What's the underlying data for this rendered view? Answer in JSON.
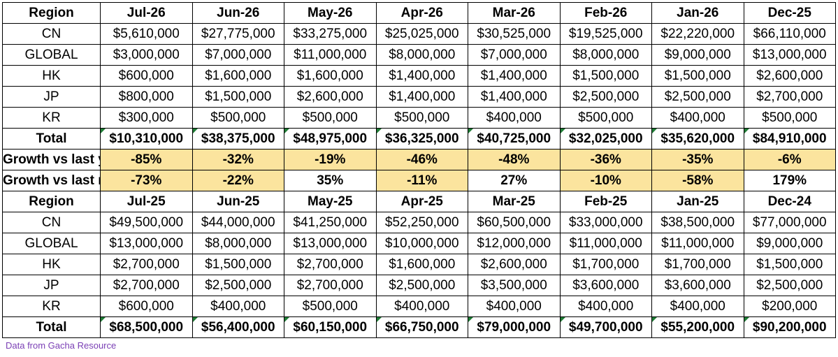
{
  "sheet": {
    "table_2026": {
      "header": [
        "Region",
        "Jul-26",
        "Jun-26",
        "May-26",
        "Apr-26",
        "Mar-26",
        "Feb-26",
        "Jan-26",
        "Dec-25"
      ],
      "rows": [
        {
          "region": "CN",
          "values": [
            "$5,610,000",
            "$27,775,000",
            "$33,275,000",
            "$25,025,000",
            "$30,525,000",
            "$19,525,000",
            "$22,220,000",
            "$66,110,000"
          ]
        },
        {
          "region": "GLOBAL",
          "values": [
            "$3,000,000",
            "$7,000,000",
            "$11,000,000",
            "$8,000,000",
            "$7,000,000",
            "$8,000,000",
            "$9,000,000",
            "$13,000,000"
          ]
        },
        {
          "region": "HK",
          "values": [
            "$600,000",
            "$1,600,000",
            "$1,600,000",
            "$1,400,000",
            "$1,400,000",
            "$1,500,000",
            "$1,500,000",
            "$2,600,000"
          ]
        },
        {
          "region": "JP",
          "values": [
            "$800,000",
            "$1,500,000",
            "$2,600,000",
            "$1,400,000",
            "$1,400,000",
            "$2,500,000",
            "$2,500,000",
            "$2,700,000"
          ]
        },
        {
          "region": "KR",
          "values": [
            "$300,000",
            "$500,000",
            "$500,000",
            "$500,000",
            "$400,000",
            "$500,000",
            "$400,000",
            "$500,000"
          ]
        }
      ],
      "total": {
        "label": "Total",
        "values": [
          "$10,310,000",
          "$38,375,000",
          "$48,975,000",
          "$36,325,000",
          "$40,725,000",
          "$32,025,000",
          "$35,620,000",
          "$84,910,000"
        ]
      },
      "growth_yoy": {
        "label": "Growth vs last year",
        "values": [
          "-85%",
          "-32%",
          "-19%",
          "-46%",
          "-48%",
          "-36%",
          "-35%",
          "-6%"
        ]
      },
      "growth_mom": {
        "label": "Growth vs last month",
        "values": [
          "-73%",
          "-22%",
          "35%",
          "-11%",
          "27%",
          "-10%",
          "-58%",
          "179%"
        ]
      }
    },
    "table_2025": {
      "header": [
        "Region",
        "Jul-25",
        "Jun-25",
        "May-25",
        "Apr-25",
        "Mar-25",
        "Feb-25",
        "Jan-25",
        "Dec-24"
      ],
      "rows": [
        {
          "region": "CN",
          "values": [
            "$49,500,000",
            "$44,000,000",
            "$41,250,000",
            "$52,250,000",
            "$60,500,000",
            "$33,000,000",
            "$38,500,000",
            "$77,000,000"
          ]
        },
        {
          "region": "GLOBAL",
          "values": [
            "$13,000,000",
            "$8,000,000",
            "$13,000,000",
            "$10,000,000",
            "$12,000,000",
            "$11,000,000",
            "$11,000,000",
            "$9,000,000"
          ]
        },
        {
          "region": "HK",
          "values": [
            "$2,700,000",
            "$1,500,000",
            "$2,700,000",
            "$1,600,000",
            "$2,600,000",
            "$1,700,000",
            "$1,700,000",
            "$1,500,000"
          ]
        },
        {
          "region": "JP",
          "values": [
            "$2,700,000",
            "$2,500,000",
            "$2,700,000",
            "$2,500,000",
            "$3,500,000",
            "$3,600,000",
            "$3,600,000",
            "$2,500,000"
          ]
        },
        {
          "region": "KR",
          "values": [
            "$600,000",
            "$400,000",
            "$500,000",
            "$400,000",
            "$400,000",
            "$400,000",
            "$400,000",
            "$200,000"
          ]
        }
      ],
      "total": {
        "label": "Total",
        "values": [
          "$68,500,000",
          "$56,400,000",
          "$60,150,000",
          "$66,750,000",
          "$79,000,000",
          "$49,700,000",
          "$55,200,000",
          "$90,200,000"
        ]
      }
    },
    "source_note": "Data from Gacha Resource",
    "colors": {
      "negative_fill": "#fbe49e",
      "negative_text": "#9a6500",
      "corner_flag": "#1e7b34",
      "source_text": "#7a3fb5"
    }
  }
}
